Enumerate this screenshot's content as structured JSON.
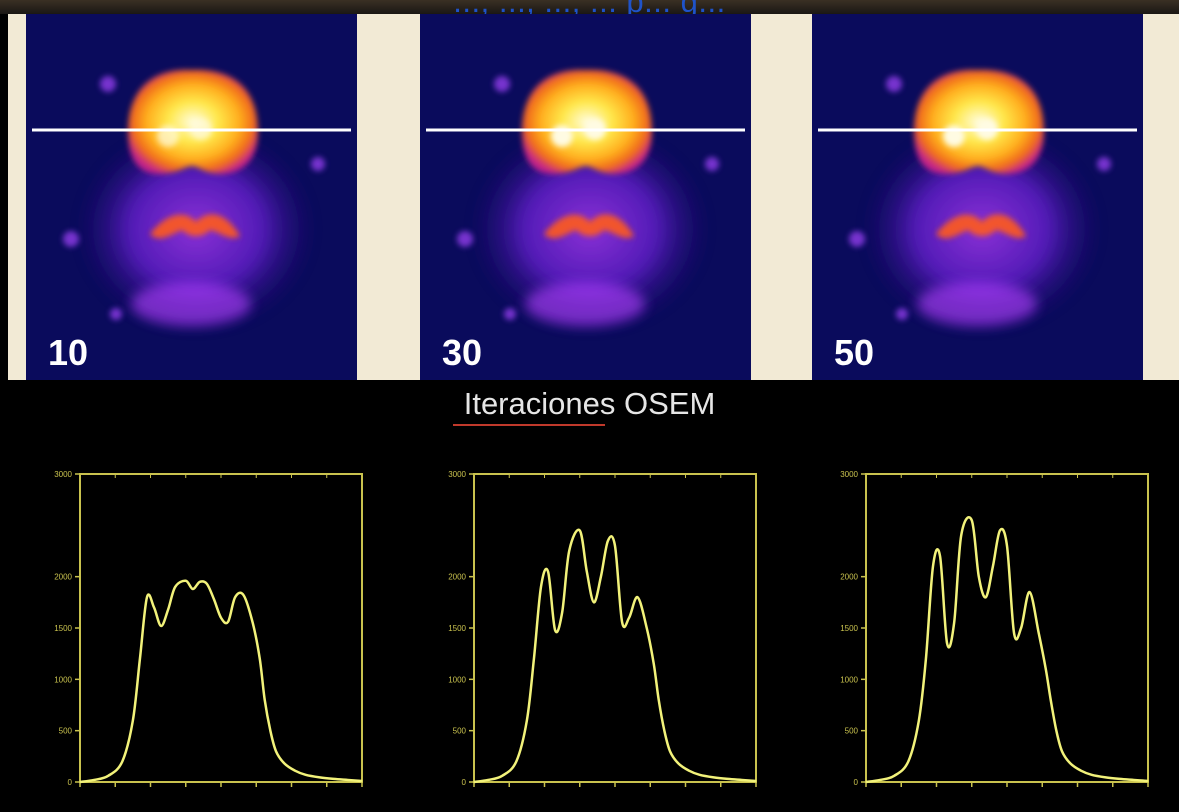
{
  "header": {
    "text": "..., ..., ..., ... p... g..."
  },
  "panels": [
    {
      "iterations_label": "10"
    },
    {
      "iterations_label": "30"
    },
    {
      "iterations_label": "50"
    }
  ],
  "caption": "Iteraciones OSEM",
  "colors": {
    "background": "#000000",
    "image_background": "#0a0b5c",
    "profile_line": "#f2f27a",
    "axis": "#c9c24e",
    "header_text": "#1f53c9",
    "caption_text": "#e6e6e6"
  },
  "chart_data": [
    {
      "type": "line",
      "ylim": [
        0,
        3000
      ],
      "xlim": [
        0,
        400
      ],
      "yticks": [
        "0",
        "500",
        "1000",
        "1500",
        "2000",
        "3000"
      ],
      "yticks_values": [
        0,
        500,
        1000,
        1500,
        2000,
        3000
      ],
      "xticks_values": [
        0,
        50,
        100,
        150,
        200,
        250,
        300,
        350,
        400
      ],
      "series": [
        {
          "x": [
            0,
            20,
            40,
            60,
            75,
            85,
            95,
            105,
            115,
            125,
            135,
            150,
            160,
            170,
            180,
            190,
            200,
            210,
            220,
            232,
            245,
            255,
            262,
            270,
            278,
            290,
            305,
            320,
            340,
            360,
            380,
            400
          ],
          "values": [
            0,
            20,
            60,
            200,
            600,
            1200,
            1800,
            1700,
            1520,
            1680,
            1900,
            1960,
            1880,
            1950,
            1930,
            1780,
            1600,
            1560,
            1800,
            1820,
            1550,
            1200,
            800,
            500,
            300,
            180,
            110,
            70,
            45,
            30,
            20,
            10
          ]
        }
      ]
    },
    {
      "type": "line",
      "ylim": [
        0,
        3000
      ],
      "xlim": [
        0,
        400
      ],
      "yticks": [
        "0",
        "500",
        "1000",
        "1500",
        "2000",
        "3000"
      ],
      "yticks_values": [
        0,
        500,
        1000,
        1500,
        2000,
        3000
      ],
      "xticks_values": [
        0,
        50,
        100,
        150,
        200,
        250,
        300,
        350,
        400
      ],
      "series": [
        {
          "x": [
            0,
            20,
            40,
            60,
            75,
            85,
            95,
            105,
            115,
            125,
            135,
            150,
            160,
            170,
            180,
            190,
            200,
            210,
            220,
            232,
            245,
            255,
            262,
            270,
            278,
            290,
            305,
            320,
            340,
            360,
            380,
            400
          ],
          "values": [
            0,
            20,
            60,
            200,
            600,
            1200,
            1900,
            2050,
            1480,
            1650,
            2250,
            2450,
            2050,
            1750,
            2000,
            2350,
            2300,
            1560,
            1600,
            1800,
            1500,
            1150,
            800,
            500,
            300,
            180,
            110,
            70,
            45,
            30,
            20,
            10
          ]
        }
      ]
    },
    {
      "type": "line",
      "ylim": [
        0,
        3000
      ],
      "xlim": [
        0,
        400
      ],
      "yticks": [
        "0",
        "500",
        "1000",
        "1500",
        "2000",
        "3000"
      ],
      "yticks_values": [
        0,
        500,
        1000,
        1500,
        2000,
        3000
      ],
      "xticks_values": [
        0,
        50,
        100,
        150,
        200,
        250,
        300,
        350,
        400
      ],
      "series": [
        {
          "x": [
            0,
            20,
            40,
            60,
            75,
            85,
            95,
            105,
            115,
            125,
            135,
            150,
            160,
            170,
            180,
            190,
            200,
            210,
            220,
            232,
            245,
            255,
            262,
            270,
            278,
            290,
            305,
            320,
            340,
            360,
            380,
            400
          ],
          "values": [
            0,
            20,
            60,
            200,
            600,
            1200,
            2100,
            2200,
            1350,
            1550,
            2400,
            2550,
            2000,
            1800,
            2100,
            2450,
            2300,
            1450,
            1500,
            1850,
            1450,
            1100,
            800,
            500,
            300,
            180,
            110,
            70,
            45,
            30,
            20,
            10
          ]
        }
      ]
    }
  ]
}
